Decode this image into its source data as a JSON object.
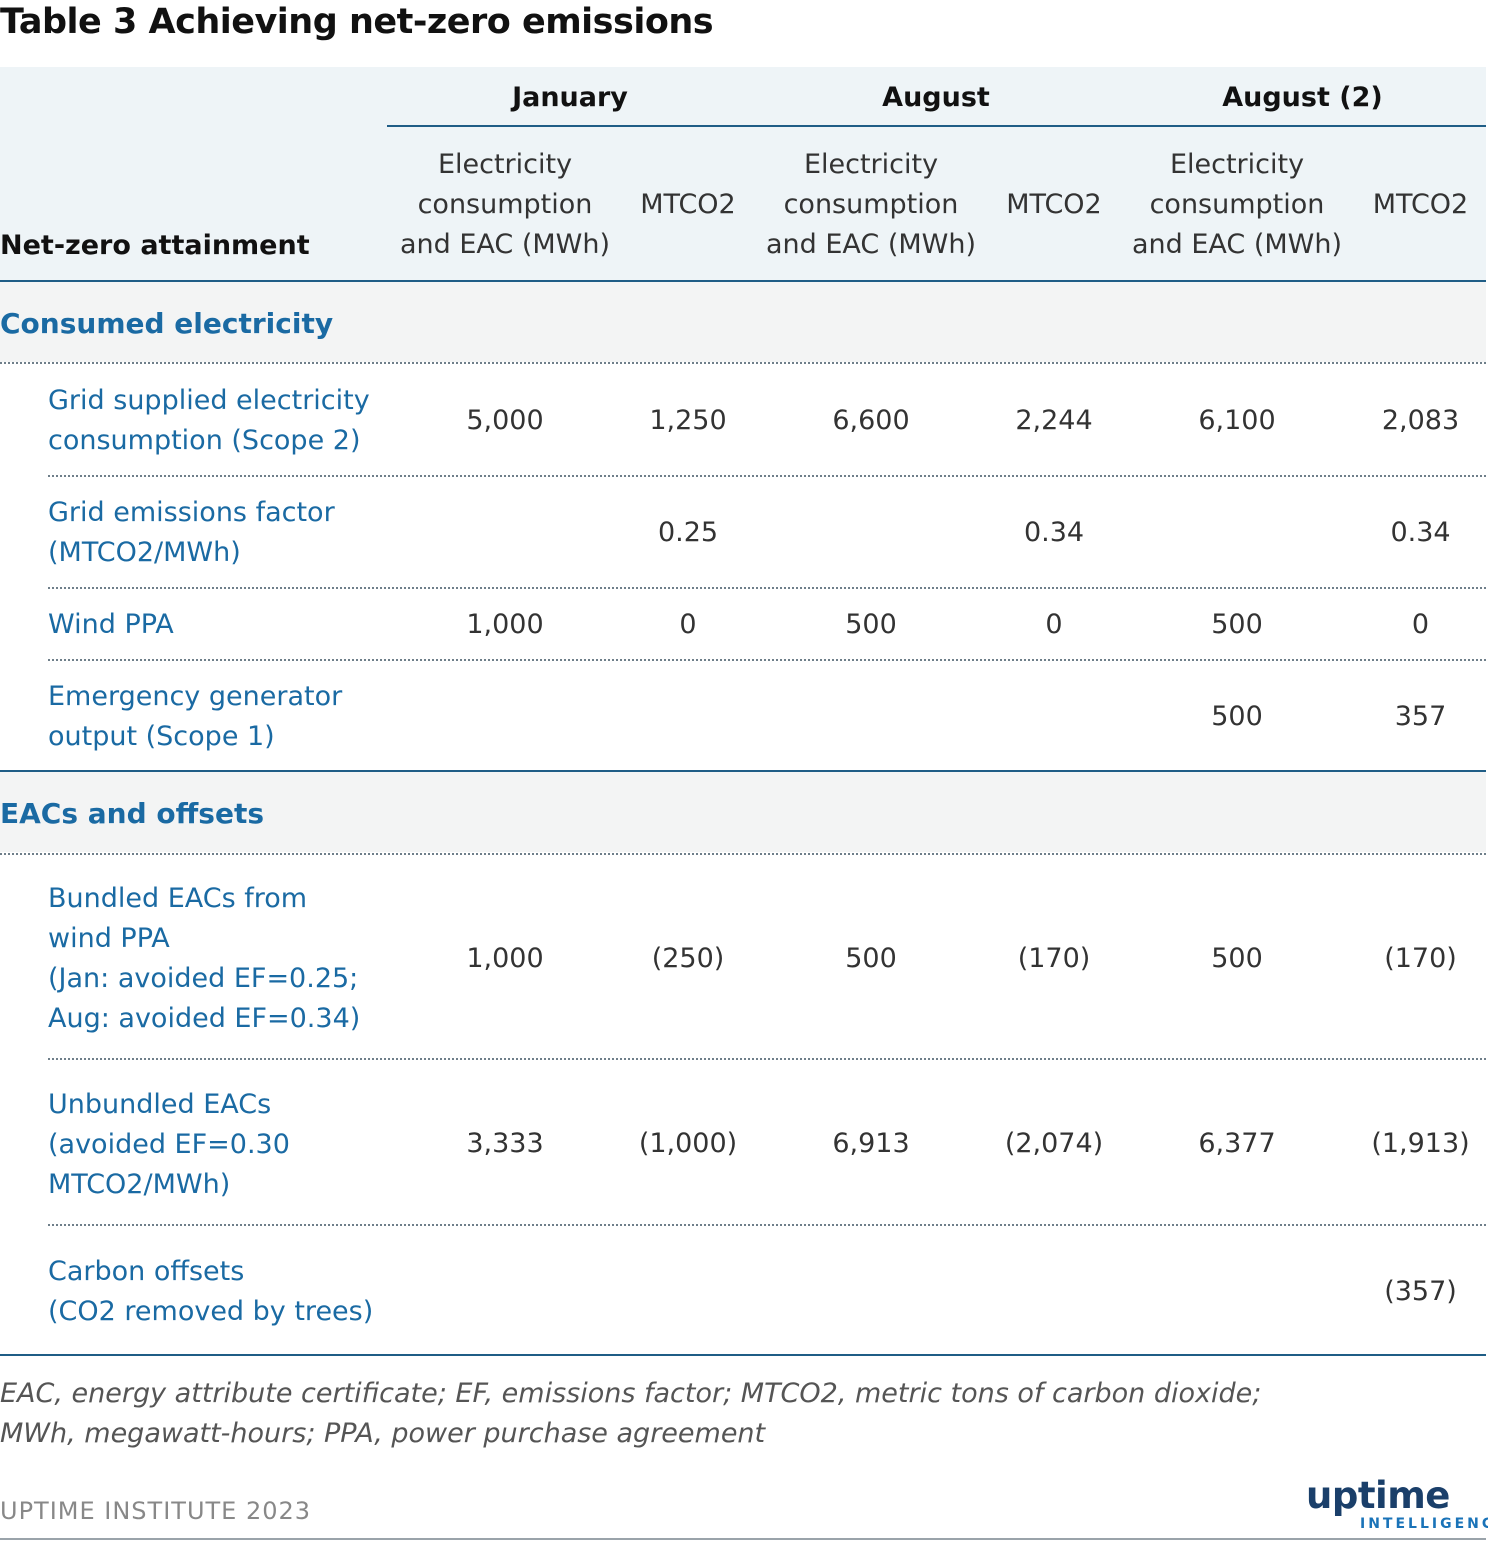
{
  "title": "Table 3 Achieving net-zero emissions",
  "table": {
    "row_header": "Net-zero attainment",
    "groups": [
      "January",
      "August",
      "August (2)"
    ],
    "col_electricity": "Electricity\nconsumption\nand EAC (MWh)",
    "col_mtco2": "MTCO2",
    "sections": [
      {
        "title": "Consumed electricity",
        "rows": [
          {
            "label": "Grid supplied electricity\nconsumption (Scope 2)",
            "values": [
              "5,000",
              "1,250",
              "6,600",
              "2,244",
              "6,100",
              "2,083"
            ]
          },
          {
            "label": "Grid emissions factor\n(MTCO2/MWh)",
            "values": [
              "",
              "0.25",
              "",
              "0.34",
              "",
              "0.34"
            ]
          },
          {
            "label": "Wind PPA",
            "values": [
              "1,000",
              "0",
              "500",
              "0",
              "500",
              "0"
            ]
          },
          {
            "label": "Emergency generator\noutput (Scope 1)",
            "values": [
              "",
              "",
              "",
              "",
              "500",
              "357"
            ]
          }
        ]
      },
      {
        "title": "EACs and offsets",
        "rows": [
          {
            "label": "Bundled EACs from\nwind PPA\n(Jan: avoided EF=0.25;\nAug: avoided EF=0.34)",
            "values": [
              "1,000",
              "(250)",
              "500",
              "(170)",
              "500",
              "(170)"
            ]
          },
          {
            "label": "Unbundled EACs\n(avoided EF=0.30\nMTCO2/MWh)",
            "values": [
              "3,333",
              "(1,000)",
              "6,913",
              "(2,074)",
              "6,377",
              "(1,913)"
            ]
          },
          {
            "label": "Carbon offsets\n(CO2 removed by trees)",
            "values": [
              "",
              "",
              "",
              "",
              "",
              "(357)"
            ]
          }
        ]
      }
    ]
  },
  "footnote": "EAC, energy attribute certificate; EF, emissions factor; MTCO2, metric tons of carbon dioxide;\nMWh, megawatt-hours; PPA, power purchase agreement",
  "source": "UPTIME INSTITUTE 2023",
  "logo": {
    "main": "uptime",
    "sub": "INTELLIGENCE"
  },
  "colors": {
    "accent": "#1a6aa3",
    "rule": "#1f5d86",
    "header_bg": "#eef4f7",
    "section_bg": "#f3f4f4"
  }
}
